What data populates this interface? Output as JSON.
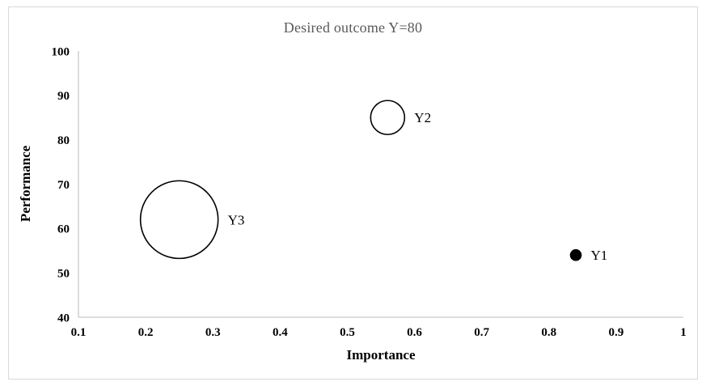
{
  "frame": {
    "background": "#ffffff",
    "border_color": "#d9d9d9"
  },
  "colors": {
    "title_text": "#595959",
    "axis_line": "#c9c9c9",
    "tick_text": "#000000",
    "bubble_stroke": "#000000",
    "bubble_fill_solid": "#000000"
  },
  "chart_data": {
    "type": "scatter",
    "subtype": "bubble",
    "title": "Desired outcome Y=80",
    "xlabel": "Importance",
    "ylabel": "Performance",
    "xlim": [
      0.1,
      1
    ],
    "ylim": [
      40,
      100
    ],
    "x_ticks": [
      {
        "value": 0.1,
        "label": "0.1"
      },
      {
        "value": 0.2,
        "label": "0.2"
      },
      {
        "value": 0.3,
        "label": "0.3"
      },
      {
        "value": 0.4,
        "label": "0.4"
      },
      {
        "value": 0.5,
        "label": "0.5"
      },
      {
        "value": 0.6,
        "label": "0.6"
      },
      {
        "value": 0.7,
        "label": "0.7"
      },
      {
        "value": 0.8,
        "label": "0.8"
      },
      {
        "value": 0.9,
        "label": "0.9"
      },
      {
        "value": 1,
        "label": "1"
      }
    ],
    "y_ticks": [
      {
        "value": 40,
        "label": "40"
      },
      {
        "value": 50,
        "label": "50"
      },
      {
        "value": 60,
        "label": "60"
      },
      {
        "value": 70,
        "label": "70"
      },
      {
        "value": 80,
        "label": "80"
      },
      {
        "value": 90,
        "label": "90"
      },
      {
        "value": 100,
        "label": "100"
      }
    ],
    "grid": false,
    "legend_position": "none",
    "points": [
      {
        "label": "Y1",
        "x": 0.84,
        "y": 54,
        "bubble_radius_px": 6.5,
        "filled": true
      },
      {
        "label": "Y2",
        "x": 0.56,
        "y": 85,
        "bubble_radius_px": 21,
        "filled": false
      },
      {
        "label": "Y3",
        "x": 0.25,
        "y": 62,
        "bubble_radius_px": 48,
        "filled": false
      }
    ]
  }
}
